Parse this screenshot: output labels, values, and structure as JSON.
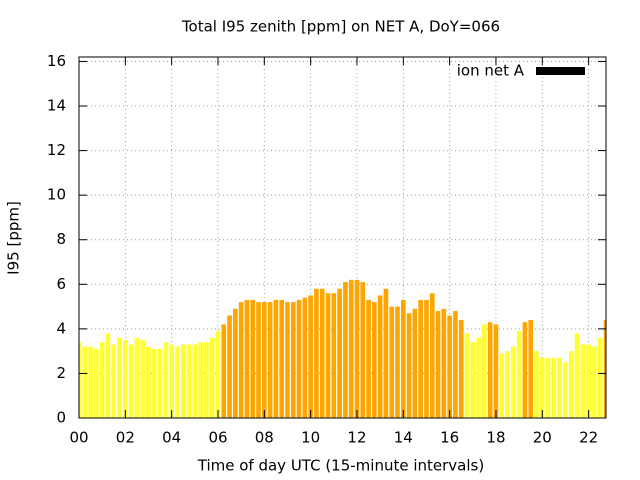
{
  "chart_data": {
    "type": "bar",
    "title": "Total I95 zenith [ppm] on NET A, DoY=066",
    "x_label": "Time of day UTC (15-minute intervals)",
    "y_label": "I95 [ppm]",
    "x": [
      0,
      0.25,
      0.5,
      0.75,
      1,
      1.25,
      1.5,
      1.75,
      2,
      2.25,
      2.5,
      2.75,
      3,
      3.25,
      3.5,
      3.75,
      4,
      4.25,
      4.5,
      4.75,
      5,
      5.25,
      5.5,
      5.75,
      6,
      6.25,
      6.5,
      6.75,
      7,
      7.25,
      7.5,
      7.75,
      8,
      8.25,
      8.5,
      8.75,
      9,
      9.25,
      9.5,
      9.75,
      10,
      10.25,
      10.5,
      10.75,
      11,
      11.25,
      11.5,
      11.75,
      12,
      12.25,
      12.5,
      12.75,
      13,
      13.25,
      13.5,
      13.75,
      14,
      14.25,
      14.5,
      14.75,
      15,
      15.25,
      15.5,
      15.75,
      16,
      16.25,
      16.5,
      16.75,
      17,
      17.25,
      17.5,
      17.75,
      18,
      18.25,
      18.5,
      18.75,
      19,
      19.25,
      19.5,
      19.75,
      20,
      20.25,
      20.5,
      20.75,
      21,
      21.25,
      21.5,
      21.75,
      22,
      22.25,
      22.5,
      22.75
    ],
    "series": [
      {
        "name": "ion net A",
        "color": "#000000",
        "values": [
          3.4,
          3.2,
          3.2,
          3.1,
          3.4,
          3.8,
          3.3,
          3.6,
          3.5,
          3.3,
          3.6,
          3.5,
          3.2,
          3.1,
          3.1,
          3.4,
          3.3,
          3.2,
          3.3,
          3.3,
          3.3,
          3.4,
          3.4,
          3.6,
          3.9,
          4.2,
          4.6,
          4.9,
          5.2,
          5.3,
          5.3,
          5.2,
          5.2,
          5.2,
          5.3,
          5.3,
          5.2,
          5.2,
          5.3,
          5.4,
          5.5,
          5.8,
          5.8,
          5.6,
          5.6,
          5.8,
          6.1,
          6.2,
          6.2,
          6.1,
          5.3,
          5.2,
          5.5,
          5.8,
          5.0,
          5.0,
          5.3,
          4.7,
          4.9,
          5.3,
          5.3,
          5.6,
          4.8,
          4.9,
          4.6,
          4.8,
          4.4,
          3.8,
          3.4,
          3.6,
          4.2,
          4.3,
          4.2,
          2.9,
          3.0,
          3.2,
          3.9,
          4.3,
          4.4,
          3.0,
          2.7,
          2.7,
          2.7,
          2.7,
          2.5,
          3.0,
          3.8,
          3.3,
          3.3,
          3.2,
          3.6,
          4.4
        ],
        "point_colors": [
          "#ffff33",
          "#ffff33",
          "#ffff33",
          "#ffff33",
          "#ffff33",
          "#ffff33",
          "#ffff33",
          "#ffff33",
          "#ffff33",
          "#ffff33",
          "#ffff33",
          "#ffff33",
          "#ffff33",
          "#ffff33",
          "#ffff33",
          "#ffff33",
          "#ffff33",
          "#ffff33",
          "#ffff33",
          "#ffff33",
          "#ffff33",
          "#ffff33",
          "#ffff33",
          "#ffff33",
          "#ffff33",
          "#ffa500",
          "#ffa500",
          "#ffa500",
          "#ffa500",
          "#ffa500",
          "#ffa500",
          "#ffa500",
          "#ffa500",
          "#ffa500",
          "#ffa500",
          "#ffa500",
          "#ffa500",
          "#ffa500",
          "#ffa500",
          "#ffa500",
          "#ffa500",
          "#ffa500",
          "#ffa500",
          "#ffa500",
          "#ffa500",
          "#ffa500",
          "#ffa500",
          "#ffa500",
          "#ffa500",
          "#ffa500",
          "#ffa500",
          "#ffa500",
          "#ffa500",
          "#ffa500",
          "#ffa500",
          "#ffa500",
          "#ffa500",
          "#ffa500",
          "#ffa500",
          "#ffa500",
          "#ffa500",
          "#ffa500",
          "#ffa500",
          "#ffa500",
          "#ffa500",
          "#ffa500",
          "#ffa500",
          "#ffff33",
          "#ffff33",
          "#ffff33",
          "#ffff33",
          "#ffa500",
          "#ffa500",
          "#ffff33",
          "#ffff33",
          "#ffff33",
          "#ffff33",
          "#ffa500",
          "#ffa500",
          "#ffff33",
          "#ffff33",
          "#ffff33",
          "#ffff33",
          "#ffff33",
          "#ffff33",
          "#ffff33",
          "#ffff33",
          "#ffff33",
          "#ffff33",
          "#ffff33",
          "#ffff33",
          "#ffa500"
        ]
      }
    ],
    "xlim": [
      0,
      22.75
    ],
    "xticks": [
      {
        "value": 0,
        "label": "00"
      },
      {
        "value": 2,
        "label": "02"
      },
      {
        "value": 4,
        "label": "04"
      },
      {
        "value": 6,
        "label": "06"
      },
      {
        "value": 8,
        "label": "08"
      },
      10,
      12,
      14,
      16,
      18,
      20,
      22
    ],
    "ylim": [
      0,
      16.2
    ],
    "yticks": [
      0,
      2,
      4,
      6,
      8,
      10,
      12,
      14,
      16
    ],
    "grid": true,
    "legend": "top-right"
  }
}
